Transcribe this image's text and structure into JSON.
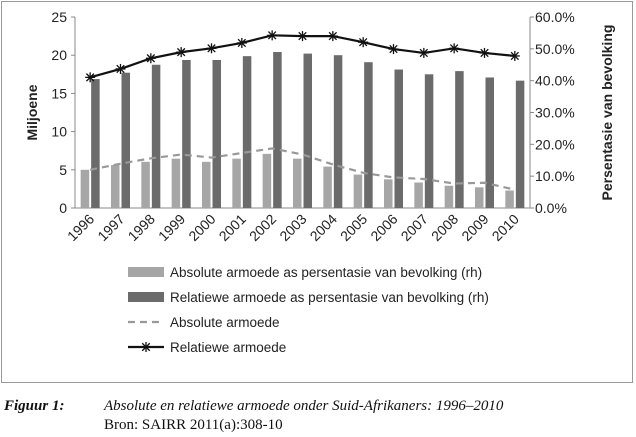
{
  "chart_data": {
    "type": "bar",
    "categories": [
      "1996",
      "1997",
      "1998",
      "1999",
      "2000",
      "2001",
      "2002",
      "2003",
      "2004",
      "2005",
      "2006",
      "2007",
      "2008",
      "2009",
      "2010"
    ],
    "ylabel": "Miljoene",
    "y2label": "Persentasie van bevolking",
    "ylim": [
      0,
      25
    ],
    "y2lim": [
      0,
      60
    ],
    "yticks": [
      "0",
      "5",
      "10",
      "15",
      "20",
      "25"
    ],
    "y2ticks": [
      "0.0%",
      "10.0%",
      "20.0%",
      "30.0%",
      "40.0%",
      "50.0%",
      "60.0%"
    ],
    "grid": false,
    "legend_position": "bottom",
    "series": [
      {
        "name": "Absolute armoede as persentasie van bevolking (rh)",
        "kind": "bar",
        "axis": "right",
        "color": "#a6a6a6",
        "values": [
          12.0,
          13.5,
          14.5,
          15.5,
          14.5,
          15.5,
          17.0,
          15.5,
          13.0,
          10.5,
          9.0,
          8.0,
          7.0,
          6.5,
          5.5
        ]
      },
      {
        "name": "Relatiewe armoede as persentasie van bevolking (rh)",
        "kind": "bar",
        "axis": "right",
        "color": "#6b6b6b",
        "values": [
          40.5,
          42.5,
          45.0,
          46.5,
          46.5,
          47.7,
          49.0,
          48.5,
          48.0,
          45.8,
          43.5,
          42.0,
          43.0,
          41.0,
          40.0
        ]
      },
      {
        "name": "Absolute armoede",
        "kind": "line-dashed",
        "axis": "left",
        "color": "#999999",
        "values": [
          5.0,
          5.8,
          6.5,
          7.0,
          6.6,
          7.2,
          7.8,
          7.0,
          5.7,
          4.6,
          4.0,
          3.8,
          3.2,
          3.3,
          2.4
        ]
      },
      {
        "name": "Relatiewe armoede",
        "kind": "line-star",
        "axis": "left",
        "color": "#111111",
        "values": [
          17.1,
          18.2,
          19.6,
          20.4,
          20.9,
          21.6,
          22.6,
          22.5,
          22.5,
          21.7,
          20.8,
          20.3,
          20.9,
          20.3,
          19.9
        ]
      }
    ]
  },
  "caption": {
    "label": "Figuur 1:",
    "title": "Absolute en relatiewe armoede onder Suid-Afrikaners: 1996–2010",
    "source": "Bron: SAIRR 2011(a):308-10"
  }
}
